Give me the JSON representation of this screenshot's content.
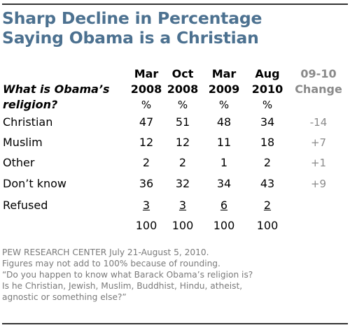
{
  "title_lines": [
    "Sharp Decline in Percentage",
    "Saying Obama is a Christian"
  ],
  "question_lines": [
    "What is Obama’s",
    "religion?"
  ],
  "columns": [
    {
      "month": "Mar",
      "year": "2008",
      "unit": "%"
    },
    {
      "month": "Oct",
      "year": "2008",
      "unit": "%"
    },
    {
      "month": "Mar",
      "year": "2009",
      "unit": "%"
    },
    {
      "month": "Aug",
      "year": "2010",
      "unit": "%"
    }
  ],
  "change_header": [
    "09-10",
    "Change"
  ],
  "rows": [
    {
      "label": "Christian",
      "values": [
        "47",
        "51",
        "48",
        "34"
      ],
      "change": "-14"
    },
    {
      "label": "Muslim",
      "values": [
        "12",
        "12",
        "11",
        "18"
      ],
      "change": "+7"
    },
    {
      "label": "Other",
      "values": [
        "2",
        "2",
        "1",
        "2"
      ],
      "change": "+1"
    },
    {
      "label": "Don’t know",
      "values": [
        "36",
        "32",
        "34",
        "43"
      ],
      "change": "+9"
    },
    {
      "label": "Refused",
      "values": [
        "3",
        "3",
        "6",
        "2"
      ],
      "change": ""
    }
  ],
  "totals": [
    "100",
    "100",
    "100",
    "100"
  ],
  "notes": [
    "PEW RESEARCH  CENTER July 21-August 5, 2010.",
    "Figures may not add to 100% because of rounding.",
    "“Do you happen to know what Barack Obama’s religion is?",
    "Is he Christian, Jewish, Muslim, Buddhist, Hindu, atheist,",
    "agnostic or something else?”"
  ],
  "colors": {
    "title": "#4c7190",
    "change": "#8a8a8a",
    "notes": "#7a7a7a"
  },
  "chart_data": {
    "type": "table",
    "title": "Sharp Decline in Percentage Saying Obama is a Christian",
    "categories": [
      "Mar 2008",
      "Oct 2008",
      "Mar 2009",
      "Aug 2010"
    ],
    "series": [
      {
        "name": "Christian",
        "values": [
          47,
          51,
          48,
          34
        ],
        "change": -14
      },
      {
        "name": "Muslim",
        "values": [
          12,
          12,
          11,
          18
        ],
        "change": 7
      },
      {
        "name": "Other",
        "values": [
          2,
          2,
          1,
          2
        ],
        "change": 1
      },
      {
        "name": "Don’t know",
        "values": [
          36,
          32,
          34,
          43
        ],
        "change": 9
      },
      {
        "name": "Refused",
        "values": [
          3,
          3,
          6,
          2
        ]
      }
    ],
    "totals": [
      100,
      100,
      100,
      100
    ]
  }
}
